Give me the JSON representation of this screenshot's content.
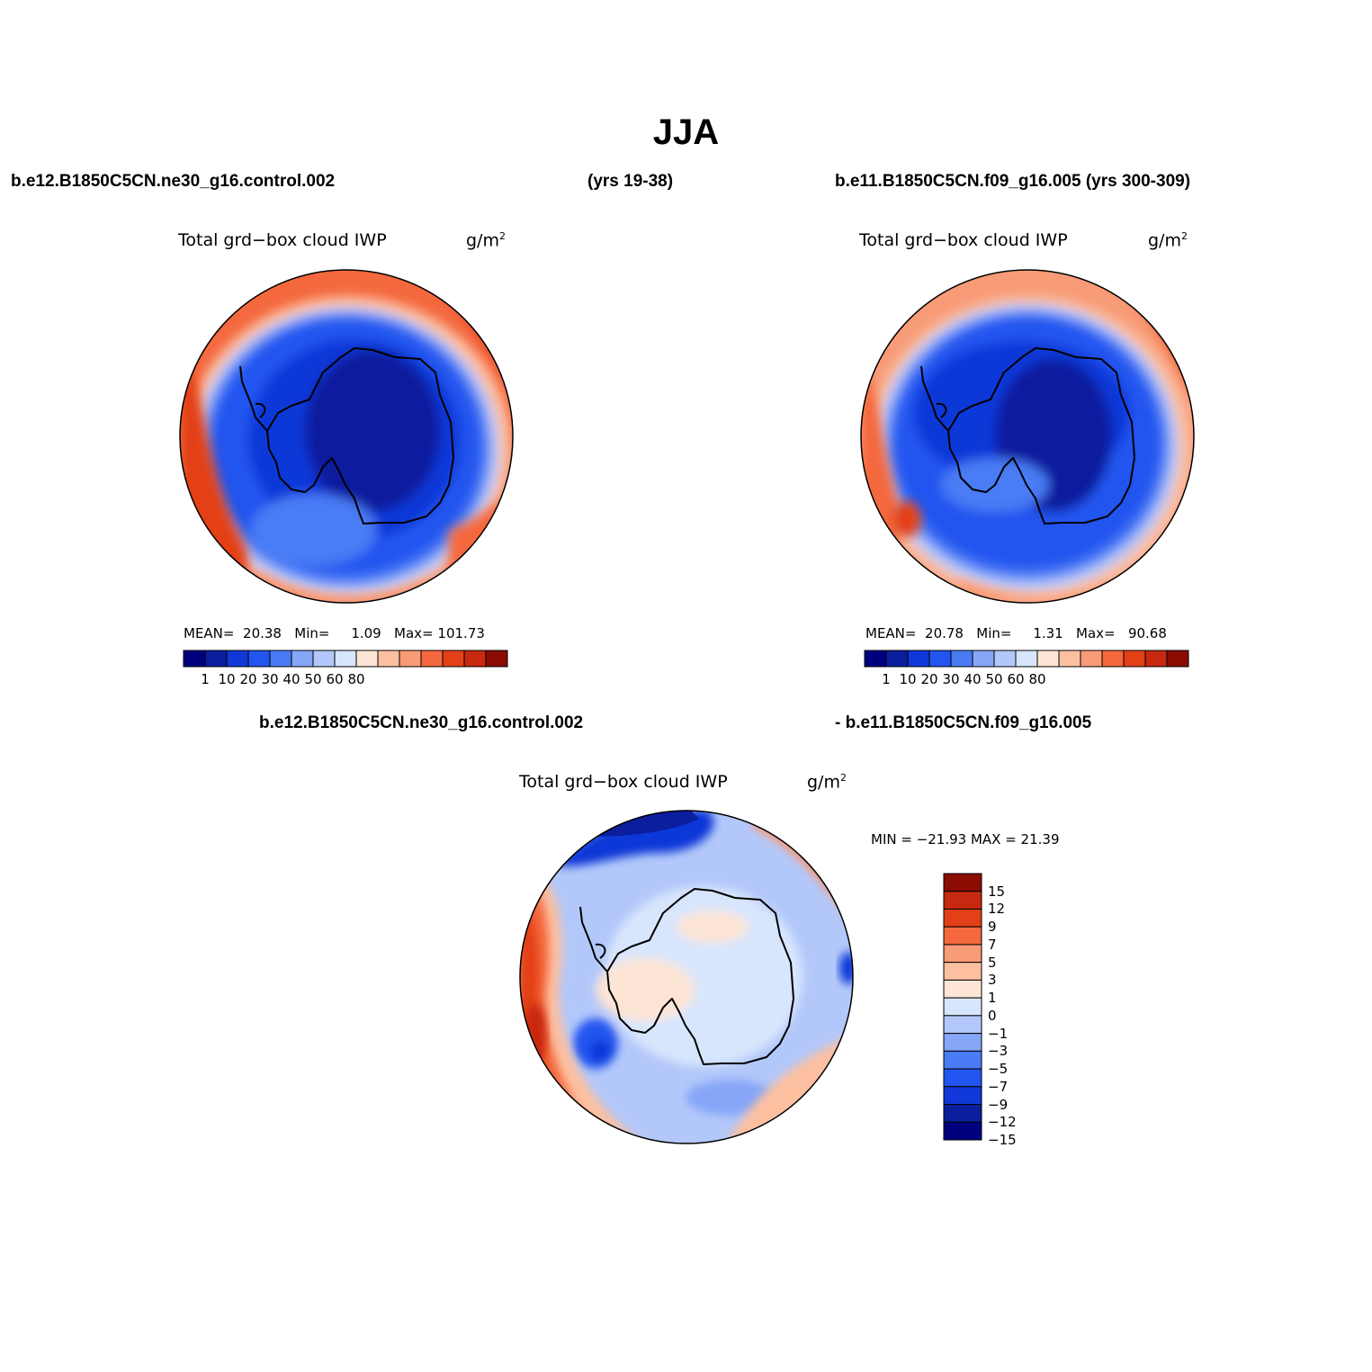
{
  "title": "JJA",
  "header": {
    "run_left": "b.e12.B1850C5CN.ne30_g16.control.002",
    "years_left": "(yrs 19-38)",
    "run_right": "b.e11.B1850C5CN.f09_g16.005 (yrs 300-309)",
    "diff_left": "b.e12.B1850C5CN.ne30_g16.control.002",
    "diff_right": "- b.e11.B1850C5CN.f09_g16.005"
  },
  "colors": {
    "abs_scale": [
      "#00007f",
      "#0b1e9e",
      "#1038d8",
      "#2255ef",
      "#4a7bf5",
      "#86a6f8",
      "#b3c8fa",
      "#d8e6fd",
      "#fde5d5",
      "#fcc0a1",
      "#f89b77",
      "#f4683e",
      "#e34017",
      "#c72810",
      "#8b0c03"
    ],
    "diff_scale": [
      "#00007f",
      "#0b1e9e",
      "#1038d8",
      "#2255ef",
      "#4a7bf5",
      "#86a6f8",
      "#b3c8fa",
      "#d8e6fd",
      "#fde5d5",
      "#fcc0a1",
      "#f89b77",
      "#f4683e",
      "#e34017",
      "#c72810",
      "#8b0c03"
    ]
  },
  "panels": {
    "left": {
      "field": "Total grd−box cloud IWP",
      "units": "g/m",
      "units_sup": "2",
      "mean_label": "MEAN=",
      "mean": "20.38",
      "min_label": "Min=",
      "min": "1.09",
      "max_label": "Max=",
      "max": "101.73",
      "colorbar_labels": [
        "1",
        "10",
        "20",
        "30",
        "40",
        "50",
        "60",
        "80"
      ]
    },
    "right": {
      "field": "Total grd−box cloud IWP",
      "units": "g/m",
      "units_sup": "2",
      "mean_label": "MEAN=",
      "mean": "20.78",
      "min_label": "Min=",
      "min": "1.31",
      "max_label": "Max=",
      "max": "90.68",
      "colorbar_labels": [
        "1",
        "10",
        "20",
        "30",
        "40",
        "50",
        "60",
        "80"
      ]
    },
    "diff": {
      "field": "Total grd−box cloud IWP",
      "units": "g/m",
      "units_sup": "2",
      "minmax": "MIN = −21.93 MAX =  21.39",
      "colorbar_labels": [
        "15",
        "12",
        "9",
        "7",
        "5",
        "3",
        "1",
        "0",
        "−1",
        "−3",
        "−5",
        "−7",
        "−9",
        "−12",
        "−15"
      ]
    }
  }
}
